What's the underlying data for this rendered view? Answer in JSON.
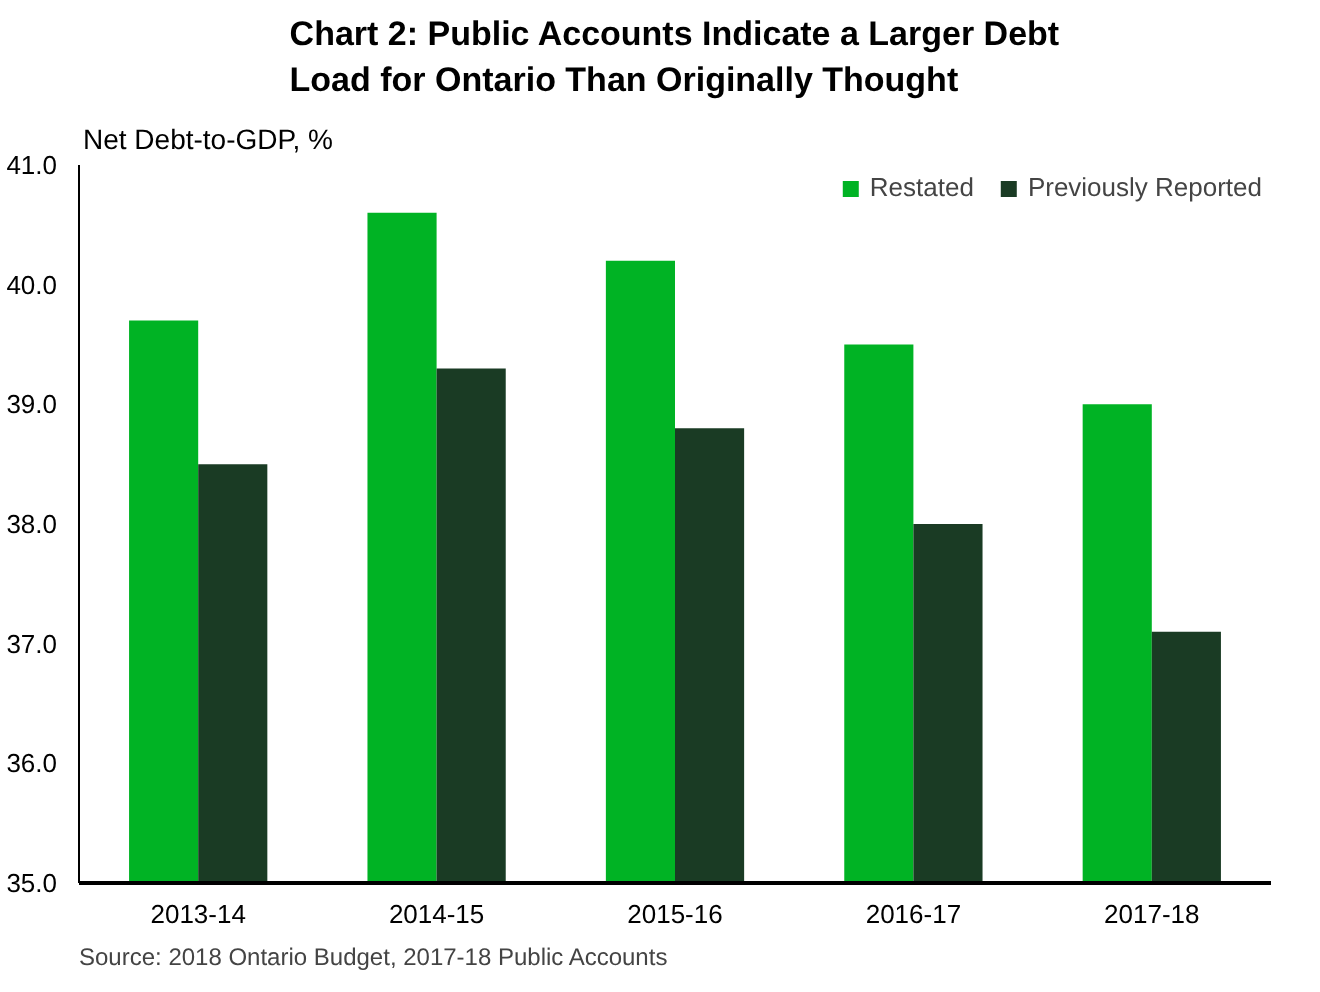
{
  "chart_data": {
    "type": "bar",
    "title": "Chart 2: Public Accounts Indicate a Larger Debt\nLoad for Ontario Than Originally Thought",
    "ylabel": "Net Debt-to-GDP, %",
    "categories": [
      "2013-14",
      "2014-15",
      "2015-16",
      "2016-17",
      "2017-18"
    ],
    "series": [
      {
        "name": "Restated",
        "color": "#00b324",
        "values": [
          39.7,
          40.6,
          40.2,
          39.5,
          39.0
        ]
      },
      {
        "name": "Previously Reported",
        "color": "#1a3b24",
        "values": [
          38.5,
          39.3,
          38.8,
          38.0,
          37.1
        ]
      }
    ],
    "ylim": [
      35,
      41
    ],
    "yticks": [
      {
        "value": 35,
        "label": "35.0"
      },
      {
        "value": 36,
        "label": "36.0"
      },
      {
        "value": 37,
        "label": "37.0"
      },
      {
        "value": 38,
        "label": "38.0"
      },
      {
        "value": 39,
        "label": "39.0"
      },
      {
        "value": 40,
        "label": "40.0"
      },
      {
        "value": 41,
        "label": "41.0"
      }
    ],
    "grid": false,
    "legend": "top right",
    "annotations": [
      "Source: 2018 Ontario Budget, 2017-18 Public Accounts"
    ]
  }
}
